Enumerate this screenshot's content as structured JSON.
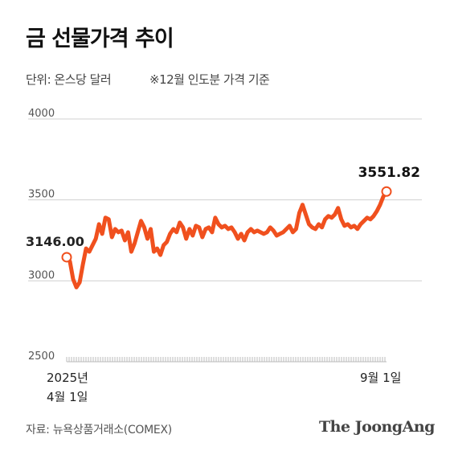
{
  "header": {
    "title": "금 선물가격 추이",
    "unit_note": "단위: 온스당 달러",
    "contract_note": "※12월 인도분 가격 기준"
  },
  "footer": {
    "source": "자료: 뉴욕상품거래소(COMEX)",
    "brand": "The JoongAng"
  },
  "chart_data": {
    "type": "line",
    "title": "금 선물가격 추이",
    "xlabel": "",
    "ylabel": "단위: 온스당 달러",
    "ylim": [
      2500,
      4000
    ],
    "yticks": [
      2500,
      3000,
      3500,
      4000
    ],
    "grid": true,
    "x_start_label": "2025년 4월 1일",
    "x_end_label": "9월 1일",
    "start_value_label": "3146.00",
    "end_value_label": "3551.82",
    "line_color": "#f0501e",
    "series": [
      {
        "values": [
          3146,
          3120,
          3010,
          2960,
          2990,
          3100,
          3200,
          3180,
          3220,
          3260,
          3350,
          3290,
          3390,
          3380,
          3270,
          3320,
          3300,
          3310,
          3250,
          3300,
          3180,
          3230,
          3300,
          3370,
          3330,
          3260,
          3320,
          3180,
          3200,
          3160,
          3220,
          3240,
          3290,
          3320,
          3300,
          3360,
          3330,
          3260,
          3320,
          3280,
          3340,
          3330,
          3270,
          3320,
          3330,
          3300,
          3390,
          3350,
          3330,
          3340,
          3320,
          3330,
          3300,
          3260,
          3290,
          3250,
          3300,
          3320,
          3300,
          3310,
          3300,
          3290,
          3300,
          3330,
          3310,
          3280,
          3290,
          3300,
          3320,
          3340,
          3300,
          3320,
          3420,
          3470,
          3410,
          3350,
          3330,
          3320,
          3350,
          3330,
          3380,
          3400,
          3390,
          3410,
          3450,
          3380,
          3340,
          3350,
          3330,
          3340,
          3320,
          3350,
          3370,
          3390,
          3380,
          3400,
          3430,
          3470,
          3520,
          3551.82
        ]
      }
    ]
  }
}
